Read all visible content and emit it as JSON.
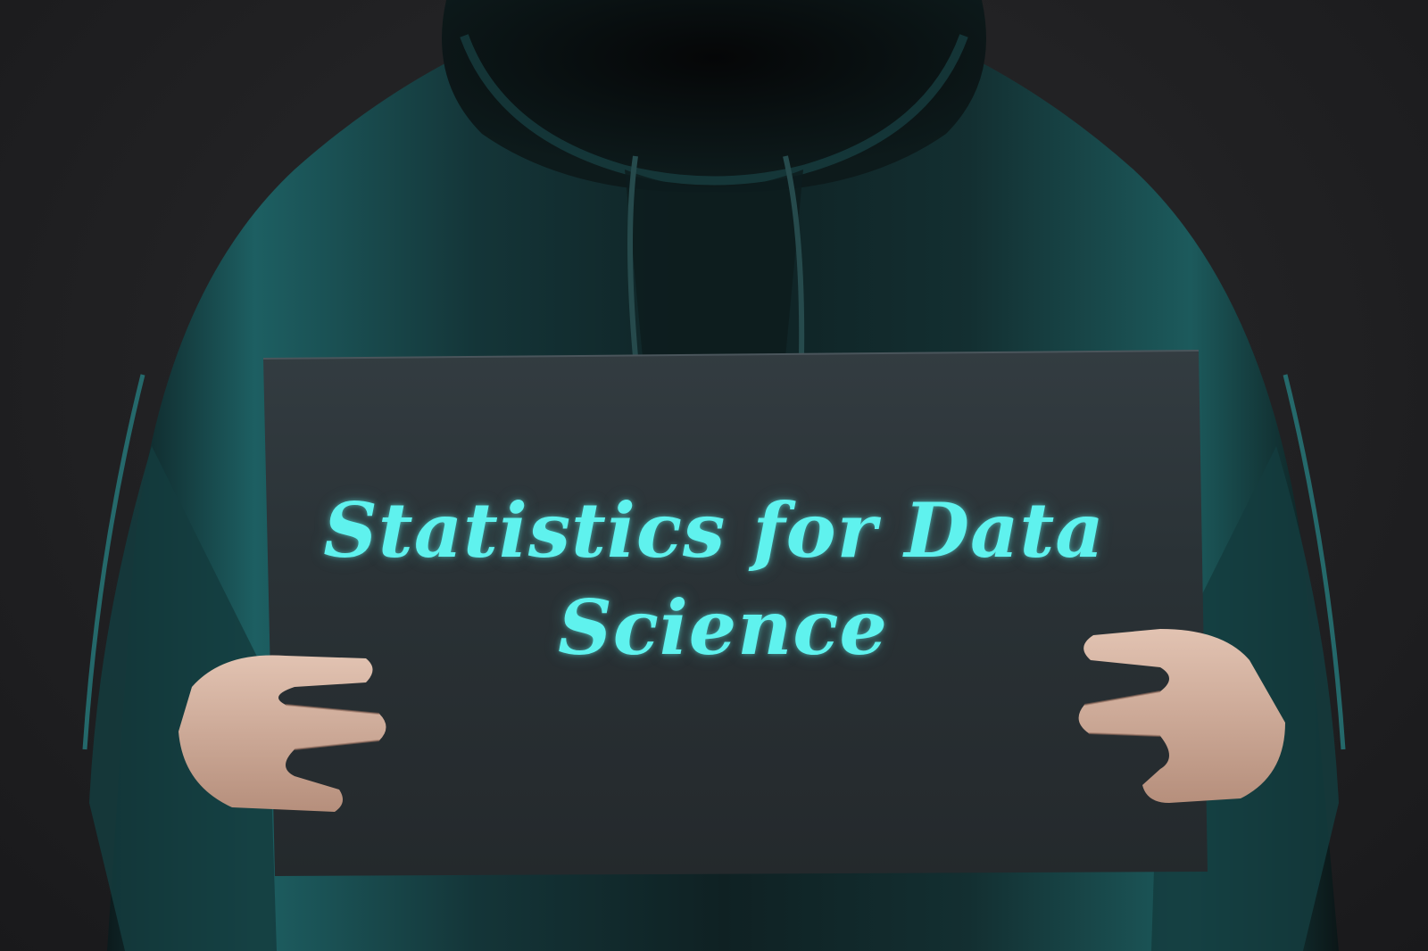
{
  "sign": {
    "line1": "Statistics for Data",
    "line2": "Science"
  },
  "colors": {
    "background": "#222224",
    "hoodie": "#13292b",
    "hoodie_highlight": "#1f6a6c",
    "sign_board": "#2a3135",
    "text_glow": "#5ff2ee",
    "skin": "#d9b8a6"
  }
}
